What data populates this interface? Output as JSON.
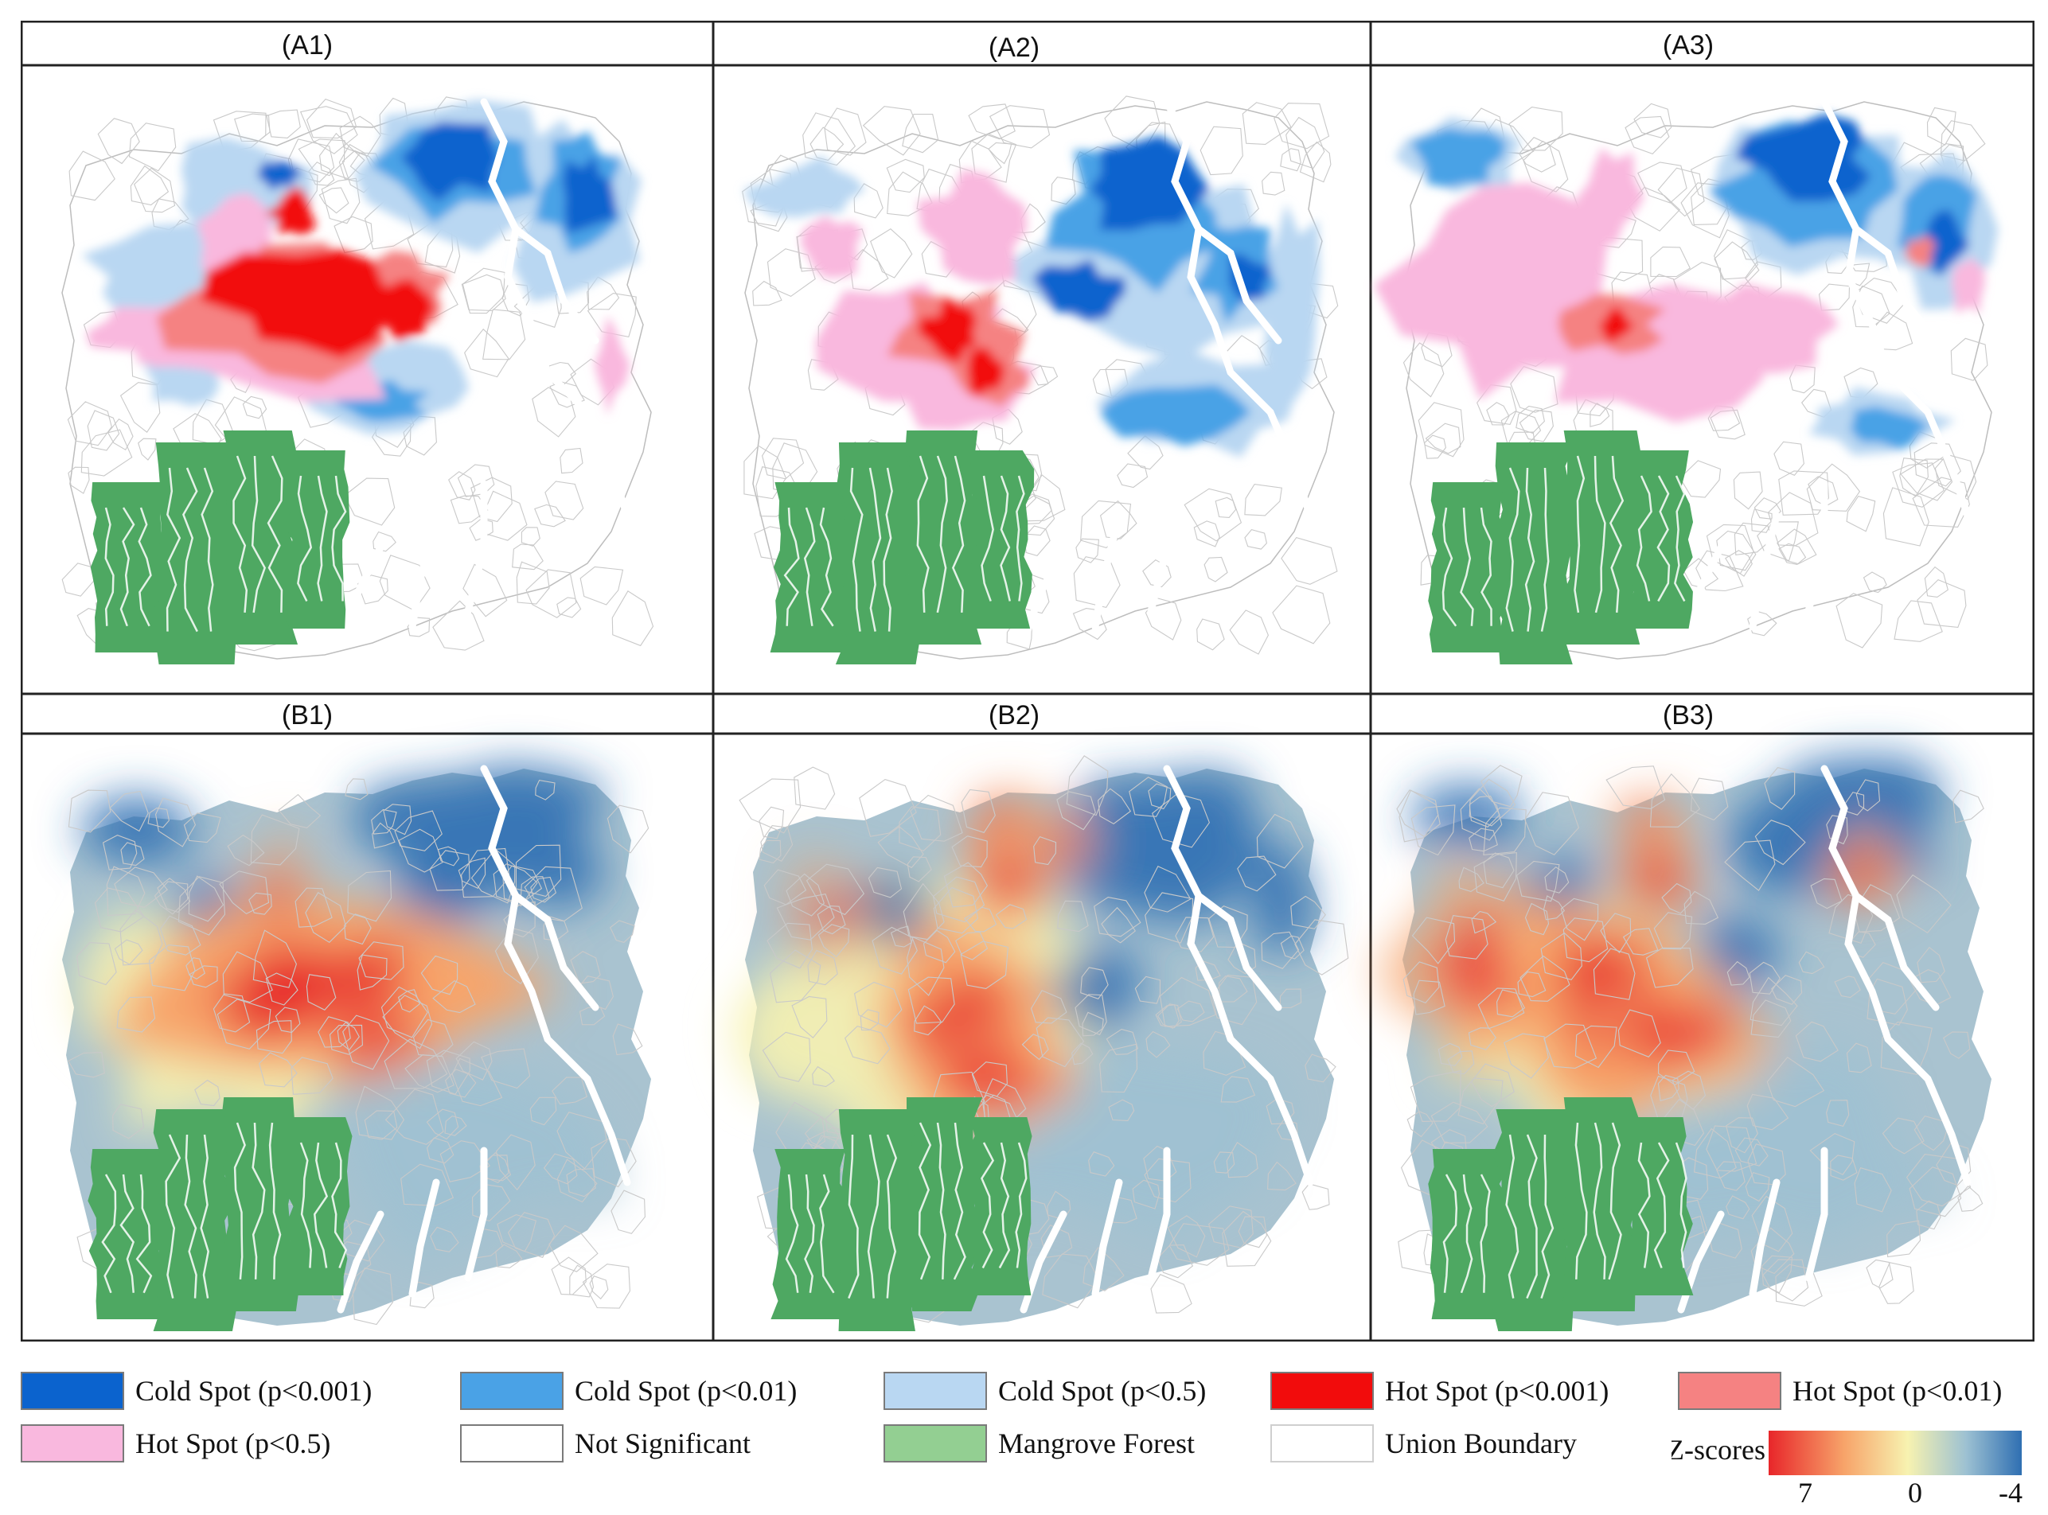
{
  "panels": [
    {
      "label": "(A1)",
      "type": "significance",
      "variant": 1
    },
    {
      "label": "(A2)",
      "type": "significance",
      "variant": 2
    },
    {
      "label": "(A3)",
      "type": "significance",
      "variant": 3
    },
    {
      "label": "(B1)",
      "type": "zscore",
      "variant": 1
    },
    {
      "label": "(B2)",
      "type": "zscore",
      "variant": 2
    },
    {
      "label": "(B3)",
      "type": "zscore",
      "variant": 3
    }
  ],
  "legend": {
    "row1": [
      {
        "label": "Cold Spot (p<0.001)",
        "color": "#0b63ce"
      },
      {
        "label": "Cold Spot (p<0.01)",
        "color": "#4aa2e6"
      },
      {
        "label": "Cold Spot (p<0.5)",
        "color": "#b9d7f2"
      },
      {
        "label": "Hot Spot (p<0.001)",
        "color": "#f20c0c"
      },
      {
        "label": "Hot Spot (p<0.01)",
        "color": "#f58282"
      }
    ],
    "row2": [
      {
        "label": "Hot Spot (p<0.5)",
        "color": "#f9b8de"
      },
      {
        "label": "Not Significant",
        "color": "#ffffff"
      },
      {
        "label": "Mangrove Forest",
        "color": "#93cf92"
      },
      {
        "label": "Union Boundary",
        "color": "#ffffff"
      }
    ],
    "zscale": {
      "title": "Z-scores",
      "max_label": "7",
      "mid_label": "0",
      "min_label": "-4",
      "colors": [
        "#e8262a",
        "#f7a46a",
        "#f7f2b0",
        "#9dc1d2",
        "#2f6fb2"
      ]
    }
  },
  "colors": {
    "mangrove": "#4ea862",
    "boundary": "#c9c9c9"
  }
}
